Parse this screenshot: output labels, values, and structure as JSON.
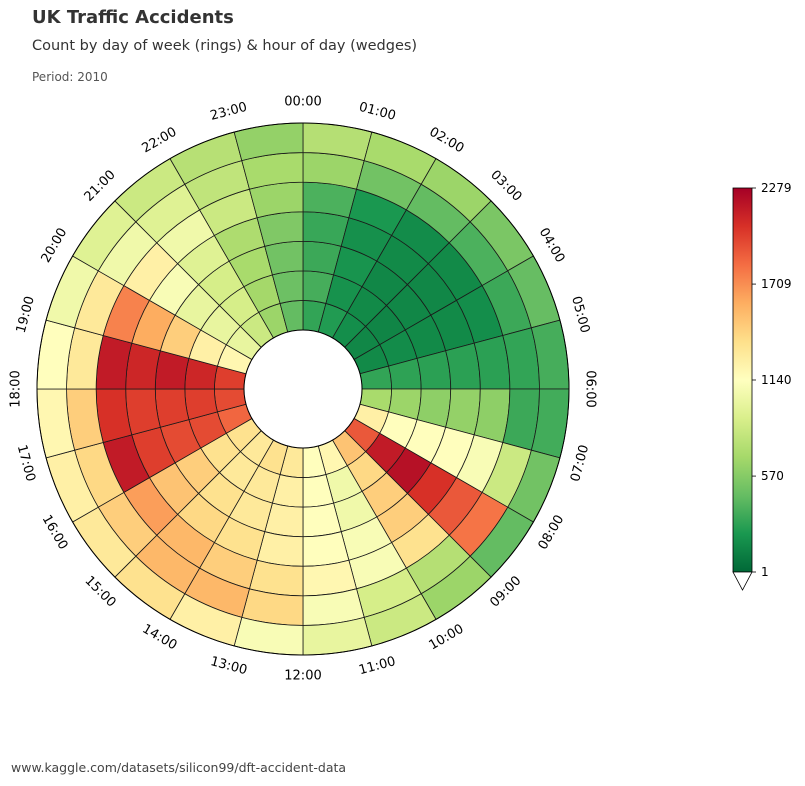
{
  "header": {
    "title": "UK Traffic Accidents",
    "subtitle": "Count by day of week (rings) & hour of day (wedges)",
    "period": "Period: 2010"
  },
  "footer": {
    "source": "www.kaggle.com/datasets/silicon99/dft-accident-data"
  },
  "chart_data": {
    "type": "heatmap",
    "layout": "polar",
    "title": "UK Traffic Accidents",
    "subtitle": "Count by day of week (rings) & hour of day (wedges)",
    "hours": [
      "00:00",
      "01:00",
      "02:00",
      "03:00",
      "04:00",
      "05:00",
      "06:00",
      "07:00",
      "08:00",
      "09:00",
      "10:00",
      "11:00",
      "12:00",
      "13:00",
      "14:00",
      "15:00",
      "16:00",
      "17:00",
      "18:00",
      "19:00",
      "20:00",
      "21:00",
      "22:00",
      "23:00"
    ],
    "rings_note": "7 rings (days of week), innermost first; day names are not printed",
    "values": [
      [
        300,
        250,
        180,
        150,
        160,
        300,
        700,
        1250,
        1900,
        1500,
        1200,
        1150,
        1300,
        1350,
        1300,
        1350,
        1850,
        1950,
        2000,
        1200,
        1000,
        850,
        650,
        450
      ],
      [
        360,
        200,
        160,
        140,
        170,
        290,
        650,
        1150,
        2150,
        1400,
        1050,
        1150,
        1250,
        1300,
        1300,
        1350,
        1950,
        2000,
        2100,
        1250,
        1000,
        900,
        680,
        480
      ],
      [
        330,
        210,
        150,
        150,
        160,
        280,
        600,
        1150,
        2200,
        1450,
        1050,
        1150,
        1250,
        1300,
        1350,
        1450,
        1950,
        2000,
        2150,
        1450,
        1000,
        900,
        700,
        500
      ],
      [
        320,
        190,
        160,
        150,
        160,
        280,
        620,
        1150,
        2050,
        1450,
        1100,
        1150,
        1250,
        1350,
        1400,
        1500,
        2000,
        2000,
        2100,
        1600,
        1100,
        950,
        720,
        550
      ],
      [
        380,
        230,
        170,
        160,
        180,
        280,
        600,
        1100,
        1900,
        1350,
        1100,
        1200,
        1350,
        1450,
        1550,
        1650,
        2150,
        2050,
        2150,
        1750,
        1250,
        1050,
        850,
        650
      ],
      [
        650,
        500,
        450,
        380,
        330,
        300,
        330,
        850,
        1800,
        750,
        900,
        1100,
        1400,
        1550,
        1550,
        1450,
        1400,
        1450,
        1300,
        1300,
        1050,
        950,
        800,
        700
      ],
      [
        750,
        700,
        650,
        530,
        460,
        360,
        350,
        500,
        450,
        650,
        850,
        1000,
        1100,
        1250,
        1350,
        1300,
        1250,
        1200,
        1150,
        1050,
        950,
        850,
        760,
        620
      ]
    ],
    "colorbar": {
      "min": 1,
      "max": 2279,
      "ticks": [
        1,
        570,
        1140,
        1709,
        2279
      ],
      "colormap": "RdYlGn_r",
      "extend": "min"
    }
  }
}
